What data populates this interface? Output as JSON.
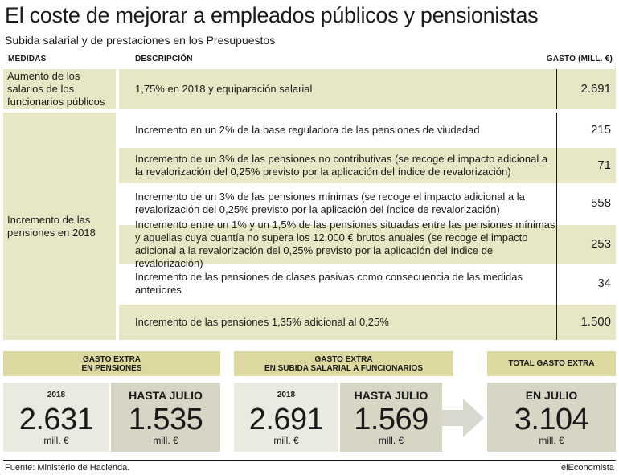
{
  "title": "El coste de mejorar a empleados públicos y pensionistas",
  "subtitle": "Subida salarial y de prestaciones en los Presupuestos",
  "table": {
    "headers": {
      "measures": "MEDIDAS",
      "description": "DESCRIPCIÓN",
      "cost": "GASTO (MILL. €)"
    },
    "groups": [
      {
        "measure": "Aumento de los salarios de los funcionarios públicos"
      },
      {
        "measure": "Incremento de las pensiones en 2018"
      }
    ],
    "rows": [
      {
        "description": "1,75% en 2018 y equiparación salarial",
        "value": "2.691"
      },
      {
        "description": "Incremento en un 2% de la base reguladora de las pensiones de viudedad",
        "value": "215"
      },
      {
        "description": "Incremento de un 3% de las pensiones no contributivas (se recoge el impacto adicional a la revalorización del 0,25% previsto por la aplicación del índice de revalorización)",
        "value": "71"
      },
      {
        "description": "Incremento de un 3% de las pensiones mínimas (se recoge el impacto adicional a la revalorización del 0,25% previsto por la aplicación del índice de revalorización)",
        "value": "558"
      },
      {
        "description": "Incremento entre un 1% y un 1,5% de las pensiones situadas entre las pensiones mínimas y aquellas cuya cuantía no supera los 12.000 € brutos anuales (se recoge el impacto adicional a la revalorización del 0,25% previsto por la aplicación del índice de revalorización)",
        "value": "253"
      },
      {
        "description": "Incremento de las pensiones de clases pasivas como consecuencia de las medidas anteriores",
        "value": "34"
      },
      {
        "description": "Incremento de las pensiones 1,35% adicional al 0,25%",
        "value": "1.500"
      }
    ]
  },
  "summary": {
    "pensions": {
      "heading_line1": "GASTO EXTRA",
      "heading_line2": "EN PENSIONES",
      "year_label": "2018",
      "year_value": "2.631",
      "year_unit": "mill. €",
      "july_label": "HASTA JULIO",
      "july_value": "1.535",
      "july_unit": "mill. €"
    },
    "salaries": {
      "heading_line1": "GASTO EXTRA",
      "heading_line2": "EN SUBIDA SALARIAL A FUNCIONARIOS",
      "year_label": "2018",
      "year_value": "2.691",
      "year_unit": "mill. €",
      "july_label": "HASTA JULIO",
      "july_value": "1.569",
      "july_unit": "mill. €"
    },
    "total": {
      "heading": "TOTAL GASTO EXTRA",
      "label": "EN JULIO",
      "value": "3.104",
      "unit": "mill. €"
    }
  },
  "footer": {
    "source": "Fuente: Ministerio de Hacienda.",
    "brand": "elEconomista"
  },
  "colors": {
    "row_shade": "#e8e7c5",
    "box_heading": "#dcd8a0",
    "cell_light": "#ebeae0",
    "cell_dark": "#d7d5c3",
    "arrow": "#d9d8ce"
  }
}
